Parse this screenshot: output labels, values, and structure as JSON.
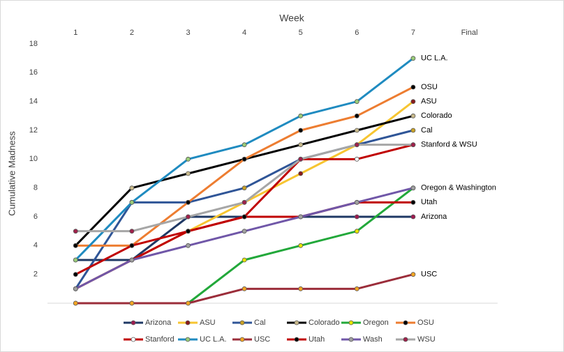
{
  "chart_data": {
    "type": "line",
    "x_title": "Week",
    "y_title": "Cumulative Madness",
    "categories": [
      "1",
      "2",
      "3",
      "4",
      "5",
      "6",
      "7",
      "Final"
    ],
    "ylim": [
      0,
      18
    ],
    "yticks": [
      2,
      4,
      6,
      8,
      10,
      12,
      14,
      16,
      18
    ],
    "legend": "bottom",
    "series": [
      {
        "name": "Arizona",
        "color": "#1f3864",
        "marker_color": "#9e1b50",
        "values": [
          3,
          3,
          6,
          6,
          6,
          6,
          6,
          null
        ]
      },
      {
        "name": "ASU",
        "color": "#f7c531",
        "marker_color": "#8b1a1a",
        "values": [
          1,
          3,
          5,
          7,
          9,
          11,
          14,
          null
        ]
      },
      {
        "name": "Cal",
        "color": "#2f5597",
        "marker_color": "#c9a227",
        "values": [
          1,
          7,
          7,
          8,
          10,
          11,
          12,
          null
        ]
      },
      {
        "name": "Colorado",
        "color": "#000000",
        "marker_color": "#c8b98a",
        "values": [
          4,
          8,
          9,
          10,
          11,
          12,
          13,
          null
        ]
      },
      {
        "name": "Oregon",
        "color": "#22a83a",
        "marker_color": "#e6e600",
        "values": [
          0,
          0,
          0,
          3,
          4,
          5,
          8,
          null
        ]
      },
      {
        "name": "OSU",
        "color": "#ed7d31",
        "marker_color": "#000000",
        "values": [
          4,
          4,
          7,
          10,
          12,
          13,
          15,
          null
        ]
      },
      {
        "name": "Stanford",
        "color": "#c00000",
        "marker_color": "#ffffff",
        "values": [
          1,
          3,
          5,
          6,
          10,
          10,
          11,
          null
        ]
      },
      {
        "name": "UC L.A.",
        "color": "#1f8bc0",
        "marker_color": "#9acd79",
        "values": [
          3,
          7,
          10,
          11,
          13,
          14,
          17,
          null
        ]
      },
      {
        "name": "USC",
        "color": "#9b2d3a",
        "marker_color": "#f5a623",
        "values": [
          0,
          0,
          0,
          1,
          1,
          1,
          2,
          null
        ]
      },
      {
        "name": "Utah",
        "color": "#c00000",
        "marker_color": "#000000",
        "values": [
          2,
          4,
          5,
          6,
          6,
          7,
          7,
          null
        ]
      },
      {
        "name": "Wash",
        "color": "#7057a8",
        "marker_color": "#a0a0a0",
        "values": [
          1,
          3,
          4,
          5,
          6,
          7,
          8,
          null
        ]
      },
      {
        "name": "WSU",
        "color": "#a6a6a6",
        "marker_color": "#a0204a",
        "values": [
          5,
          5,
          6,
          7,
          10,
          11,
          11,
          null
        ]
      }
    ],
    "annotations": [
      {
        "text": "UC L.A.",
        "y": 17
      },
      {
        "text": "OSU",
        "y": 15
      },
      {
        "text": "ASU",
        "y": 14
      },
      {
        "text": "Colorado",
        "y": 13
      },
      {
        "text": "Cal",
        "y": 12
      },
      {
        "text": "Stanford & WSU",
        "y": 11
      },
      {
        "text": "Oregon & Washington",
        "y": 8
      },
      {
        "text": "Utah",
        "y": 7
      },
      {
        "text": "Arizona",
        "y": 6
      },
      {
        "text": "USC",
        "y": 2
      }
    ]
  }
}
